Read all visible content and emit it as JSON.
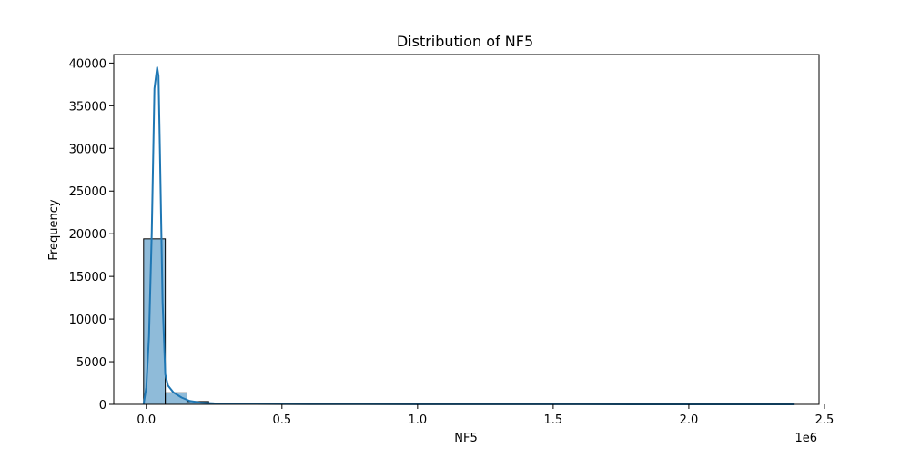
{
  "chart_data": {
    "type": "histogram",
    "title": "Distribution of NF5",
    "xlabel": "NF5",
    "ylabel": "Frequency",
    "x_offset_label": "1e6",
    "xlim": [
      -0.12,
      2.48
    ],
    "ylim": [
      0,
      41000
    ],
    "x_ticks": [
      0.0,
      0.5,
      1.0,
      1.5,
      2.0,
      2.5
    ],
    "x_tick_labels": [
      "0.0",
      "0.5",
      "1.0",
      "1.5",
      "2.0",
      "2.5"
    ],
    "y_ticks": [
      0,
      5000,
      10000,
      15000,
      20000,
      25000,
      30000,
      35000,
      40000
    ],
    "y_tick_labels": [
      "0",
      "5000",
      "10000",
      "15000",
      "20000",
      "25000",
      "30000",
      "35000",
      "40000"
    ],
    "grid": false,
    "bin_edges": [
      -0.01,
      0.07,
      0.15,
      0.23,
      0.31,
      0.39,
      0.47,
      0.55,
      0.63,
      0.71,
      0.79,
      0.87,
      0.95,
      1.03,
      1.11,
      1.19,
      1.27,
      1.35,
      1.43,
      1.51,
      1.59,
      1.67,
      1.75,
      1.83,
      1.91,
      1.99,
      2.07,
      2.15,
      2.23,
      2.31,
      2.39
    ],
    "counts": [
      19400,
      1350,
      330,
      110,
      60,
      50,
      30,
      20,
      15,
      10,
      10,
      8,
      6,
      6,
      5,
      5,
      4,
      4,
      3,
      3,
      3,
      3,
      2,
      2,
      2,
      2,
      2,
      1,
      1,
      1
    ],
    "kde": {
      "x": [
        -0.01,
        0.0,
        0.01,
        0.02,
        0.03,
        0.04,
        0.045,
        0.05,
        0.06,
        0.07,
        0.08,
        0.1,
        0.13,
        0.16,
        0.2,
        0.25,
        0.3,
        0.4,
        0.5,
        0.6,
        0.8,
        1.0,
        1.2,
        1.5,
        1.8,
        2.1,
        2.39
      ],
      "y": [
        0,
        2000,
        8000,
        20000,
        37000,
        39500,
        38500,
        30000,
        12000,
        3500,
        2200,
        1400,
        800,
        400,
        200,
        120,
        80,
        60,
        40,
        30,
        20,
        15,
        10,
        8,
        6,
        4,
        2
      ]
    },
    "bar_color": "#1f77b4",
    "bar_alpha": 0.5,
    "bar_edge_color": "#000000",
    "line_color": "#1f77b4"
  }
}
